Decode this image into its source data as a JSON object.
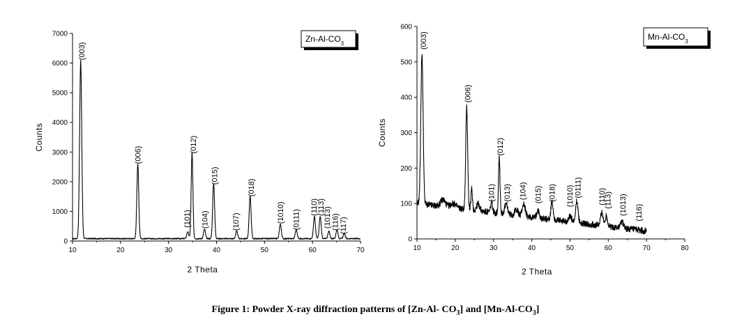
{
  "caption": "Figure 1: Powder X-ray diffraction patterns of [Zn-Al- CO3] and [Mn-Al-CO3]",
  "chart_data": [
    {
      "type": "line",
      "legend": "Zn-Al-CO3",
      "legend_placement": "top-right",
      "xlabel": "2 Theta",
      "ylabel": "Counts",
      "xlim": [
        10,
        70
      ],
      "ylim": [
        0,
        7000
      ],
      "xticks": [
        10,
        20,
        30,
        40,
        50,
        60,
        70
      ],
      "yticks": [
        0,
        1000,
        2000,
        3000,
        4000,
        5000,
        6000,
        7000
      ],
      "color": "#000000",
      "baseline": 80,
      "peaks": [
        {
          "x": 11.7,
          "y": 6000,
          "w": 0.22
        },
        {
          "x": 23.6,
          "y": 2500,
          "w": 0.2
        },
        {
          "x": 34.0,
          "y": 230,
          "w": 0.2
        },
        {
          "x": 34.9,
          "y": 2900,
          "w": 0.18
        },
        {
          "x": 37.5,
          "y": 320,
          "w": 0.2
        },
        {
          "x": 39.4,
          "y": 1850,
          "w": 0.2
        },
        {
          "x": 44.2,
          "y": 250,
          "w": 0.2
        },
        {
          "x": 47.0,
          "y": 1450,
          "w": 0.2
        },
        {
          "x": 53.3,
          "y": 500,
          "w": 0.2
        },
        {
          "x": 56.6,
          "y": 300,
          "w": 0.2
        },
        {
          "x": 60.4,
          "y": 750,
          "w": 0.2
        },
        {
          "x": 61.6,
          "y": 750,
          "w": 0.2
        },
        {
          "x": 63.4,
          "y": 250,
          "w": 0.2
        },
        {
          "x": 65.1,
          "y": 300,
          "w": 0.2
        },
        {
          "x": 66.6,
          "y": 180,
          "w": 0.2
        }
      ],
      "annotations": [
        {
          "text": "(003)",
          "x": 11.9,
          "y": 6100
        },
        {
          "text": "(006)",
          "x": 23.6,
          "y": 2600
        },
        {
          "text": "(101)",
          "x": 33.8,
          "y": 450
        },
        {
          "text": "(012)",
          "x": 35.1,
          "y": 2950
        },
        {
          "text": "(104)",
          "x": 37.5,
          "y": 420
        },
        {
          "text": "(015)",
          "x": 39.6,
          "y": 1900
        },
        {
          "text": "(107)",
          "x": 44.0,
          "y": 350
        },
        {
          "text": "(018)",
          "x": 47.2,
          "y": 1500
        },
        {
          "text": "(1010)",
          "x": 53.3,
          "y": 580
        },
        {
          "text": "(0111)",
          "x": 56.6,
          "y": 370
        },
        {
          "text": "(110)",
          "x": 60.3,
          "y": 850
        },
        {
          "text": "(113)",
          "x": 61.7,
          "y": 850
        },
        {
          "text": "(1013)",
          "x": 63.0,
          "y": 420
        },
        {
          "text": "(116)",
          "x": 64.7,
          "y": 350
        },
        {
          "text": "(117)",
          "x": 66.4,
          "y": 230
        }
      ]
    },
    {
      "type": "line",
      "legend": "Mn-Al-CO3",
      "legend_placement": "top-right",
      "xlabel": "2 Theta",
      "ylabel": "Counts",
      "xlim": [
        10,
        80
      ],
      "ylim": [
        0,
        600
      ],
      "xticks": [
        10,
        20,
        30,
        40,
        50,
        60,
        70,
        80
      ],
      "yticks": [
        0,
        100,
        200,
        300,
        400,
        500,
        600
      ],
      "color": "#000000",
      "x_range": [
        10,
        70
      ],
      "baseline_start": 100,
      "baseline_end": 22,
      "peaks": [
        {
          "x": 11.3,
          "y": 420,
          "w": 0.3
        },
        {
          "x": 16.8,
          "y": 20,
          "w": 0.6
        },
        {
          "x": 19.5,
          "y": 12,
          "w": 0.8
        },
        {
          "x": 23.0,
          "y": 290,
          "w": 0.25
        },
        {
          "x": 24.3,
          "y": 60,
          "w": 0.2
        },
        {
          "x": 26.0,
          "y": 20,
          "w": 0.4
        },
        {
          "x": 29.5,
          "y": 28,
          "w": 0.25
        },
        {
          "x": 31.5,
          "y": 160,
          "w": 0.2
        },
        {
          "x": 33.3,
          "y": 28,
          "w": 0.4
        },
        {
          "x": 36.0,
          "y": 18,
          "w": 0.4
        },
        {
          "x": 37.9,
          "y": 35,
          "w": 0.4
        },
        {
          "x": 41.6,
          "y": 25,
          "w": 0.3
        },
        {
          "x": 45.3,
          "y": 48,
          "w": 0.3
        },
        {
          "x": 50.0,
          "y": 15,
          "w": 0.4
        },
        {
          "x": 51.8,
          "y": 62,
          "w": 0.3
        },
        {
          "x": 58.3,
          "y": 40,
          "w": 0.3
        },
        {
          "x": 59.5,
          "y": 30,
          "w": 0.3
        },
        {
          "x": 63.6,
          "y": 18,
          "w": 0.4
        }
      ],
      "annotations": [
        {
          "text": "(003)",
          "x": 11.6,
          "y": 535
        },
        {
          "text": "(006)",
          "x": 23.2,
          "y": 385
        },
        {
          "text": "(101)",
          "x": 29.4,
          "y": 105
        },
        {
          "text": "(012)",
          "x": 31.7,
          "y": 235
        },
        {
          "text": "(013)",
          "x": 33.5,
          "y": 105
        },
        {
          "text": "(104)",
          "x": 37.6,
          "y": 110
        },
        {
          "text": "(015)",
          "x": 41.6,
          "y": 100
        },
        {
          "text": "(018)",
          "x": 45.3,
          "y": 105
        },
        {
          "text": "(1010)",
          "x": 49.9,
          "y": 90
        },
        {
          "text": "(0111)",
          "x": 52.0,
          "y": 115
        },
        {
          "text": "(110)",
          "x": 58.3,
          "y": 95
        },
        {
          "text": "(113)",
          "x": 59.9,
          "y": 85
        },
        {
          "text": "(1013)",
          "x": 63.8,
          "y": 65
        },
        {
          "text": "(116)",
          "x": 68.0,
          "y": 50
        }
      ]
    }
  ]
}
